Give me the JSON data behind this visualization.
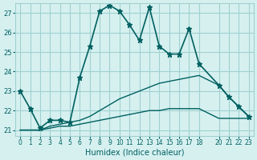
{
  "xlabel": "Humidex (Indice chaleur)",
  "ylabel": "",
  "background_color": "#d6f0f0",
  "grid_color": "#a0d0d0",
  "line_color": "#006060",
  "xlim": [
    -0.5,
    23.5
  ],
  "ylim": [
    20.7,
    27.5
  ],
  "yticks": [
    21,
    22,
    23,
    24,
    25,
    26,
    27
  ],
  "xticks": [
    0,
    1,
    2,
    3,
    4,
    5,
    6,
    7,
    8,
    9,
    10,
    11,
    12,
    13,
    14,
    15,
    16,
    17,
    18,
    20,
    21,
    22,
    23
  ],
  "lines": [
    {
      "x": [
        0,
        1,
        2,
        3,
        4,
        5,
        6,
        7,
        8,
        9,
        10,
        11,
        12,
        13,
        14,
        15,
        16,
        17,
        18,
        19,
        20,
        21,
        22,
        23
      ],
      "y": [
        23.0,
        22.1,
        21.1,
        21.5,
        21.5,
        21.4,
        23.7,
        25.3,
        27.1,
        27.4,
        27.1,
        26.4,
        25.6,
        27.3,
        25.3,
        24.9,
        24.9,
        26.2,
        24.4,
        null,
        23.3,
        22.7,
        22.2,
        21.7
      ],
      "style": "-",
      "marker": "*",
      "markersize": 5,
      "linewidth": 1.2
    },
    {
      "x": [
        0,
        1,
        2,
        3,
        4,
        5,
        6,
        7,
        8,
        9,
        10,
        11,
        12,
        13,
        14,
        15,
        16,
        17,
        18,
        19,
        20,
        21,
        22,
        23
      ],
      "y": [
        21.0,
        21.0,
        21.0,
        21.2,
        21.3,
        21.4,
        21.5,
        21.7,
        22.0,
        22.3,
        22.6,
        22.8,
        23.0,
        23.2,
        23.4,
        23.5,
        23.6,
        23.7,
        23.8,
        null,
        23.3,
        22.7,
        22.2,
        21.7
      ],
      "style": "-",
      "marker": null,
      "markersize": 0,
      "linewidth": 1.0
    },
    {
      "x": [
        0,
        1,
        2,
        3,
        4,
        5,
        6,
        7,
        8,
        9,
        10,
        11,
        12,
        13,
        14,
        15,
        16,
        17,
        18,
        19,
        20,
        21,
        22,
        23
      ],
      "y": [
        21.0,
        21.0,
        21.0,
        21.1,
        21.2,
        21.2,
        21.3,
        21.4,
        21.5,
        21.6,
        21.7,
        21.8,
        21.9,
        22.0,
        22.0,
        22.1,
        22.1,
        22.1,
        22.1,
        null,
        21.6,
        21.6,
        21.6,
        21.6
      ],
      "style": "-",
      "marker": null,
      "markersize": 0,
      "linewidth": 1.0
    }
  ]
}
